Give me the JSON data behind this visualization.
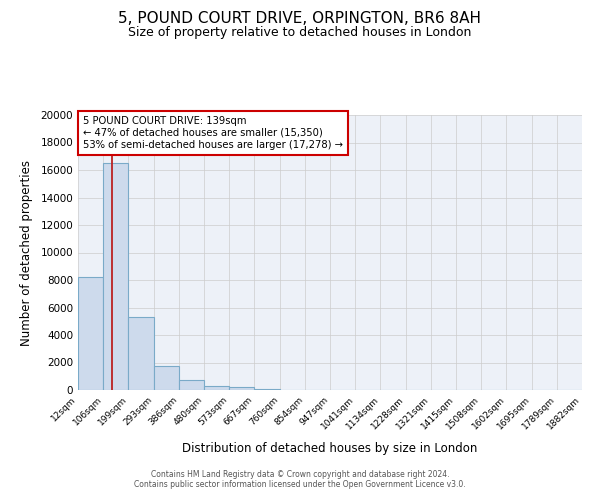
{
  "title": "5, POUND COURT DRIVE, ORPINGTON, BR6 8AH",
  "subtitle": "Size of property relative to detached houses in London",
  "xlabel": "Distribution of detached houses by size in London",
  "ylabel": "Number of detached properties",
  "bar_values": [
    8200,
    16500,
    5300,
    1750,
    750,
    300,
    200,
    100,
    0,
    0,
    0,
    0,
    0,
    0,
    0,
    0,
    0,
    0,
    0,
    0
  ],
  "bar_labels": [
    "12sqm",
    "106sqm",
    "199sqm",
    "293sqm",
    "386sqm",
    "480sqm",
    "573sqm",
    "667sqm",
    "760sqm",
    "854sqm",
    "947sqm",
    "1041sqm",
    "1134sqm",
    "1228sqm",
    "1321sqm",
    "1415sqm",
    "1508sqm",
    "1602sqm",
    "1695sqm",
    "1789sqm",
    "1882sqm"
  ],
  "bar_color": "#cddaec",
  "bar_edgecolor": "#7aaac8",
  "grid_color": "#cccccc",
  "background_color": "#edf1f8",
  "property_size_label": "5 POUND COURT DRIVE: 139sqm",
  "pct_smaller": 47,
  "n_smaller": 15350,
  "pct_larger": 53,
  "n_larger": 17278,
  "red_line_x": 1.36,
  "annotation_box_edgecolor": "#cc0000",
  "ylim": [
    0,
    20000
  ],
  "yticks": [
    0,
    2000,
    4000,
    6000,
    8000,
    10000,
    12000,
    14000,
    16000,
    18000,
    20000
  ],
  "footer1": "Contains HM Land Registry data © Crown copyright and database right 2024.",
  "footer2": "Contains public sector information licensed under the Open Government Licence v3.0."
}
